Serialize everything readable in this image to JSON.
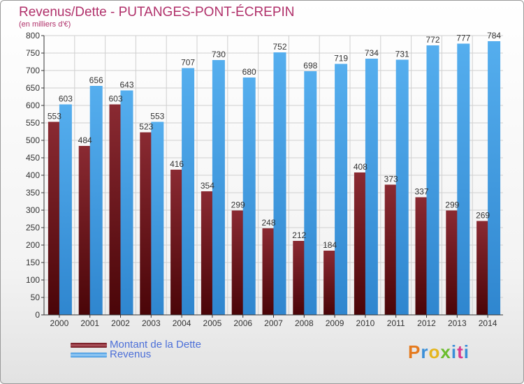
{
  "header": {
    "title": "Revenus/Dette - PUTANGES-PONT-ÉCREPIN",
    "subtitle": "(en milliers d'€)"
  },
  "brand": {
    "text": "Proxiti",
    "colors": [
      "#e57a1e",
      "#3a8fd8",
      "#e5b61e",
      "#6bbd2e",
      "#3a8fd8",
      "#d83a8f",
      "#3a8fd8"
    ]
  },
  "colors": {
    "dette": "#7a1e28",
    "revenus": "#4aa3e6",
    "grid": "#cfcfcf",
    "axis": "#333333",
    "legend_text": "#4c6fd8"
  },
  "chart_data": {
    "type": "bar",
    "title": "Revenus/Dette - PUTANGES-PONT-ÉCREPIN",
    "subtitle": "(en milliers d'€)",
    "categories": [
      "2000",
      "2001",
      "2002",
      "2003",
      "2004",
      "2005",
      "2006",
      "2007",
      "2008",
      "2009",
      "2010",
      "2011",
      "2012",
      "2013",
      "2014"
    ],
    "series": [
      {
        "name": "Montant de la Dette",
        "values": [
          553,
          484,
          603,
          523,
          416,
          354,
          299,
          248,
          212,
          184,
          408,
          373,
          337,
          299,
          269
        ]
      },
      {
        "name": "Revenus",
        "values": [
          603,
          656,
          643,
          553,
          707,
          730,
          680,
          752,
          698,
          719,
          734,
          731,
          772,
          777,
          784
        ]
      }
    ],
    "ylim": [
      0,
      800
    ],
    "yticks": [
      0,
      50,
      100,
      150,
      200,
      250,
      300,
      350,
      400,
      450,
      500,
      550,
      600,
      650,
      700,
      750,
      800
    ],
    "grid": true,
    "legend_position": "bottom-left"
  }
}
